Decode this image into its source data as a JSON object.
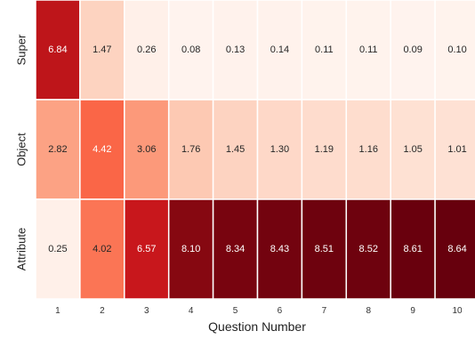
{
  "chart_data": {
    "type": "heatmap",
    "title": "",
    "xlabel": "Question Number",
    "ylabel": "",
    "x_categories": [
      "1",
      "2",
      "3",
      "4",
      "5",
      "6",
      "7",
      "8",
      "9",
      "10"
    ],
    "y_categories": [
      "Super",
      "Object",
      "Attribute"
    ],
    "values": [
      [
        6.84,
        1.47,
        0.26,
        0.08,
        0.13,
        0.14,
        0.11,
        0.11,
        0.09,
        0.1
      ],
      [
        2.82,
        4.42,
        3.06,
        1.76,
        1.45,
        1.3,
        1.19,
        1.16,
        1.05,
        1.01
      ],
      [
        0.25,
        4.02,
        6.57,
        8.1,
        8.34,
        8.43,
        8.51,
        8.52,
        8.61,
        8.64
      ]
    ],
    "value_format": "2 decimals",
    "colormap": "Reds",
    "color_range": [
      0,
      8.64
    ],
    "grid": false,
    "legend": "none"
  }
}
